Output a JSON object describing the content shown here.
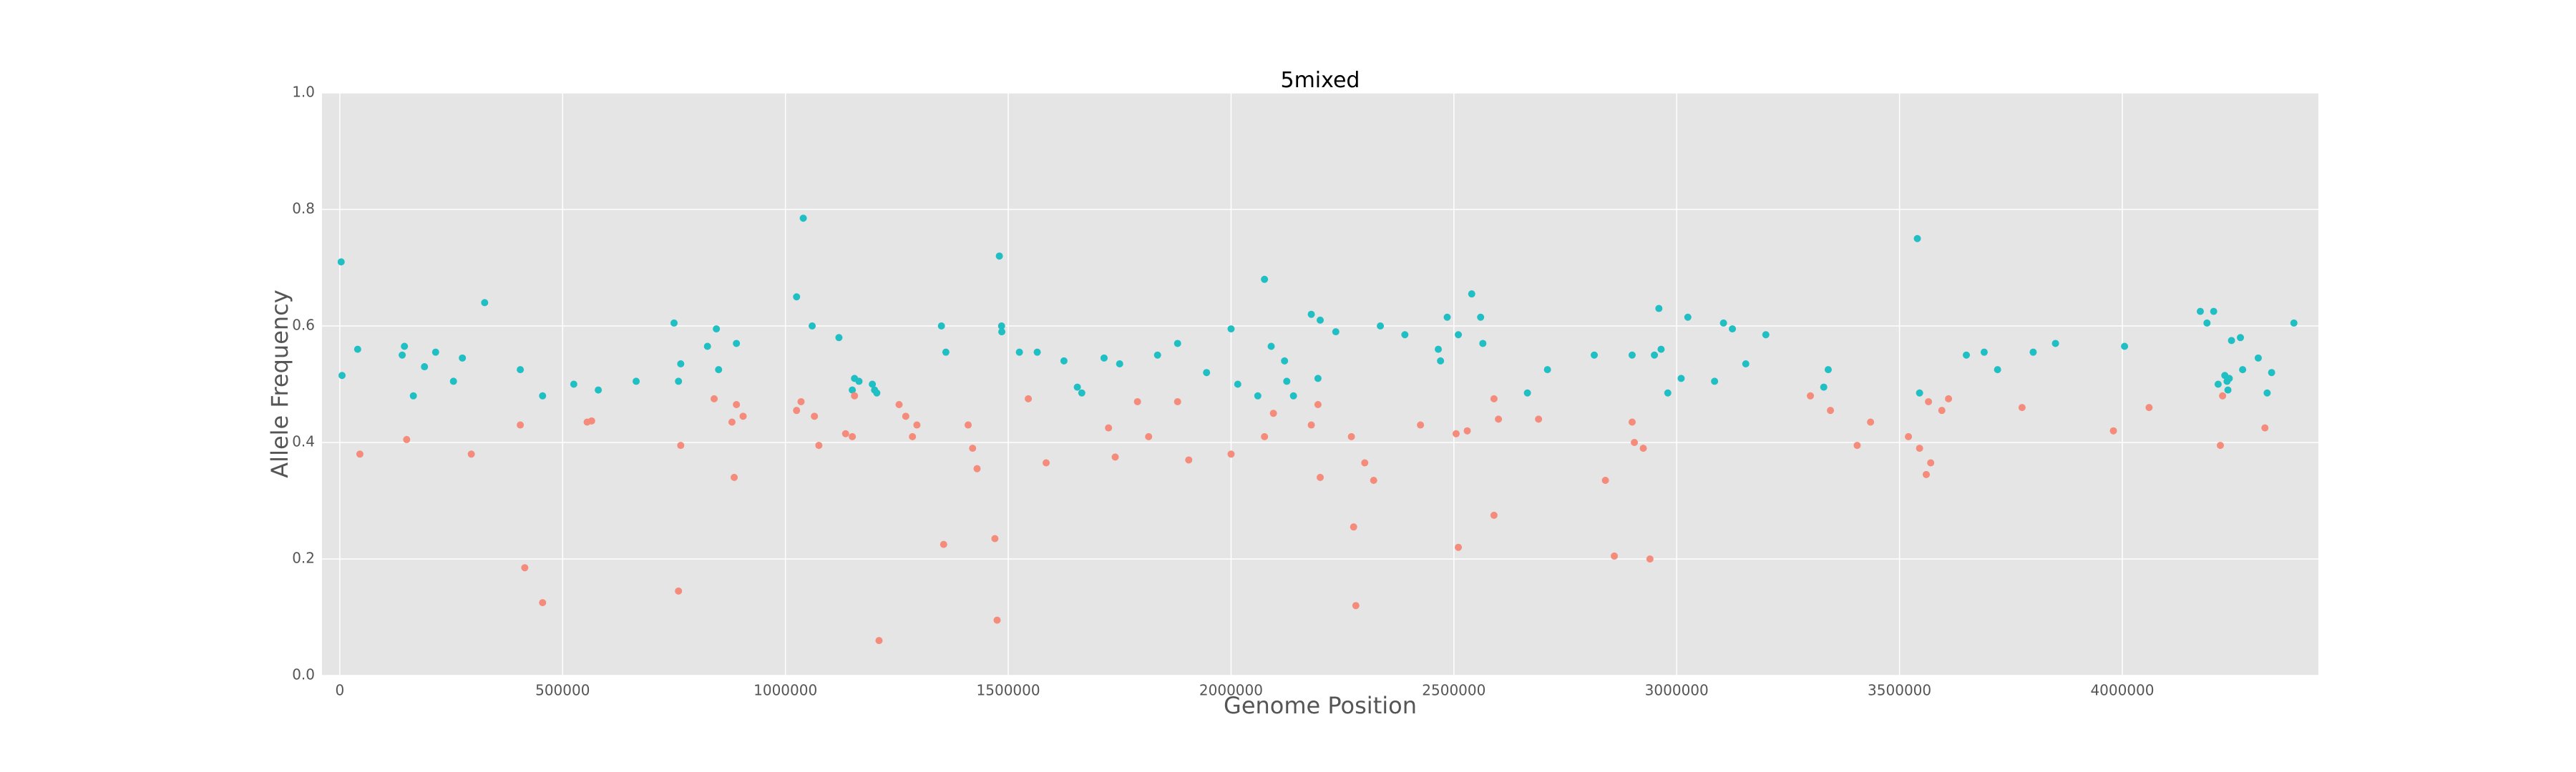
{
  "chart_data": {
    "type": "scatter",
    "title": "5mixed",
    "xlabel": "Genome Position",
    "ylabel": "Allele Frequency",
    "xlim": [
      -40000,
      4440000
    ],
    "ylim": [
      0,
      1
    ],
    "xticks": [
      0,
      500000,
      1000000,
      1500000,
      2000000,
      2500000,
      3000000,
      3500000,
      4000000
    ],
    "yticks": [
      0.0,
      0.2,
      0.4,
      0.6,
      0.8,
      1.0
    ],
    "grid": true,
    "legend": "none",
    "background_color": "#e5e5e5",
    "series": [
      {
        "color": "#1fbfc4",
        "points": [
          [
            3000,
            0.71
          ],
          [
            5000,
            0.515
          ],
          [
            40000,
            0.56
          ],
          [
            140000,
            0.55
          ],
          [
            145000,
            0.565
          ],
          [
            165000,
            0.48
          ],
          [
            190000,
            0.53
          ],
          [
            215000,
            0.555
          ],
          [
            255000,
            0.505
          ],
          [
            275000,
            0.545
          ],
          [
            325000,
            0.64
          ],
          [
            405000,
            0.525
          ],
          [
            455000,
            0.48
          ],
          [
            525000,
            0.5
          ],
          [
            580000,
            0.49
          ],
          [
            665000,
            0.505
          ],
          [
            750000,
            0.605
          ],
          [
            760000,
            0.505
          ],
          [
            765000,
            0.535
          ],
          [
            825000,
            0.565
          ],
          [
            845000,
            0.595
          ],
          [
            850000,
            0.525
          ],
          [
            890000,
            0.57
          ],
          [
            1025000,
            0.65
          ],
          [
            1040000,
            0.785
          ],
          [
            1060000,
            0.6
          ],
          [
            1120000,
            0.58
          ],
          [
            1150000,
            0.49
          ],
          [
            1155000,
            0.51
          ],
          [
            1165000,
            0.505
          ],
          [
            1195000,
            0.5
          ],
          [
            1200000,
            0.49
          ],
          [
            1205000,
            0.485
          ],
          [
            1350000,
            0.6
          ],
          [
            1360000,
            0.555
          ],
          [
            1480000,
            0.72
          ],
          [
            1485000,
            0.6
          ],
          [
            1485500,
            0.59
          ],
          [
            1525000,
            0.555
          ],
          [
            1565000,
            0.555
          ],
          [
            1625000,
            0.54
          ],
          [
            1655000,
            0.495
          ],
          [
            1665000,
            0.485
          ],
          [
            1715000,
            0.545
          ],
          [
            1750000,
            0.535
          ],
          [
            1835000,
            0.55
          ],
          [
            1880000,
            0.57
          ],
          [
            1945000,
            0.52
          ],
          [
            2000000,
            0.595
          ],
          [
            2015000,
            0.5
          ],
          [
            2060000,
            0.48
          ],
          [
            2075000,
            0.68
          ],
          [
            2090000,
            0.565
          ],
          [
            2120000,
            0.54
          ],
          [
            2125000,
            0.505
          ],
          [
            2140000,
            0.48
          ],
          [
            2180000,
            0.62
          ],
          [
            2195000,
            0.51
          ],
          [
            2200000,
            0.61
          ],
          [
            2235000,
            0.59
          ],
          [
            2335000,
            0.6
          ],
          [
            2390000,
            0.585
          ],
          [
            2465000,
            0.56
          ],
          [
            2470000,
            0.54
          ],
          [
            2485000,
            0.615
          ],
          [
            2510000,
            0.585
          ],
          [
            2540000,
            0.655
          ],
          [
            2560000,
            0.615
          ],
          [
            2565000,
            0.57
          ],
          [
            2665000,
            0.485
          ],
          [
            2710000,
            0.525
          ],
          [
            2815000,
            0.55
          ],
          [
            2900000,
            0.55
          ],
          [
            2950000,
            0.55
          ],
          [
            2960000,
            0.63
          ],
          [
            2965000,
            0.56
          ],
          [
            2980000,
            0.485
          ],
          [
            3010000,
            0.51
          ],
          [
            3025000,
            0.615
          ],
          [
            3085000,
            0.505
          ],
          [
            3105000,
            0.605
          ],
          [
            3125000,
            0.595
          ],
          [
            3155000,
            0.535
          ],
          [
            3200000,
            0.585
          ],
          [
            3330000,
            0.495
          ],
          [
            3340000,
            0.525
          ],
          [
            3540000,
            0.75
          ],
          [
            3545000,
            0.485
          ],
          [
            3650000,
            0.55
          ],
          [
            3690000,
            0.555
          ],
          [
            3720000,
            0.525
          ],
          [
            3800000,
            0.555
          ],
          [
            3850000,
            0.57
          ],
          [
            4005000,
            0.565
          ],
          [
            4175000,
            0.625
          ],
          [
            4190000,
            0.605
          ],
          [
            4205000,
            0.625
          ],
          [
            4215000,
            0.5
          ],
          [
            4230000,
            0.515
          ],
          [
            4235000,
            0.505
          ],
          [
            4237000,
            0.49
          ],
          [
            4240000,
            0.51
          ],
          [
            4245000,
            0.575
          ],
          [
            4265000,
            0.58
          ],
          [
            4270000,
            0.525
          ],
          [
            4305000,
            0.545
          ],
          [
            4325000,
            0.485
          ],
          [
            4335000,
            0.52
          ],
          [
            4385000,
            0.605
          ]
        ]
      },
      {
        "color": "#f48b7b",
        "points": [
          [
            45000,
            0.38
          ],
          [
            150000,
            0.405
          ],
          [
            295000,
            0.38
          ],
          [
            405000,
            0.43
          ],
          [
            415000,
            0.185
          ],
          [
            455000,
            0.125
          ],
          [
            555000,
            0.435
          ],
          [
            565000,
            0.437
          ],
          [
            760000,
            0.145
          ],
          [
            765000,
            0.395
          ],
          [
            840000,
            0.475
          ],
          [
            880000,
            0.435
          ],
          [
            885000,
            0.34
          ],
          [
            890000,
            0.465
          ],
          [
            905000,
            0.445
          ],
          [
            1025000,
            0.455
          ],
          [
            1035000,
            0.47
          ],
          [
            1065000,
            0.445
          ],
          [
            1075000,
            0.395
          ],
          [
            1135000,
            0.415
          ],
          [
            1150000,
            0.41
          ],
          [
            1155000,
            0.48
          ],
          [
            1210000,
            0.06
          ],
          [
            1255000,
            0.465
          ],
          [
            1270000,
            0.445
          ],
          [
            1285000,
            0.41
          ],
          [
            1295000,
            0.43
          ],
          [
            1355000,
            0.225
          ],
          [
            1410000,
            0.43
          ],
          [
            1420000,
            0.39
          ],
          [
            1430000,
            0.355
          ],
          [
            1470000,
            0.235
          ],
          [
            1475000,
            0.095
          ],
          [
            1545000,
            0.475
          ],
          [
            1585000,
            0.365
          ],
          [
            1725000,
            0.425
          ],
          [
            1740000,
            0.375
          ],
          [
            1790000,
            0.47
          ],
          [
            1815000,
            0.41
          ],
          [
            1880000,
            0.47
          ],
          [
            1905000,
            0.37
          ],
          [
            2000000,
            0.38
          ],
          [
            2075000,
            0.41
          ],
          [
            2095000,
            0.45
          ],
          [
            2180000,
            0.43
          ],
          [
            2195000,
            0.465
          ],
          [
            2200000,
            0.34
          ],
          [
            2270000,
            0.41
          ],
          [
            2275000,
            0.255
          ],
          [
            2280000,
            0.12
          ],
          [
            2300000,
            0.365
          ],
          [
            2320000,
            0.335
          ],
          [
            2425000,
            0.43
          ],
          [
            2505000,
            0.415
          ],
          [
            2510000,
            0.22
          ],
          [
            2530000,
            0.42
          ],
          [
            2590000,
            0.275
          ],
          [
            2600000,
            0.44
          ],
          [
            2590000,
            0.475
          ],
          [
            2690000,
            0.44
          ],
          [
            2840000,
            0.335
          ],
          [
            2860000,
            0.205
          ],
          [
            2900000,
            0.435
          ],
          [
            2905000,
            0.4
          ],
          [
            2925000,
            0.39
          ],
          [
            2940000,
            0.2
          ],
          [
            3300000,
            0.48
          ],
          [
            3345000,
            0.455
          ],
          [
            3405000,
            0.395
          ],
          [
            3435000,
            0.435
          ],
          [
            3520000,
            0.41
          ],
          [
            3545000,
            0.39
          ],
          [
            3560000,
            0.345
          ],
          [
            3565000,
            0.47
          ],
          [
            3570000,
            0.365
          ],
          [
            3595000,
            0.455
          ],
          [
            3610000,
            0.475
          ],
          [
            3775000,
            0.46
          ],
          [
            3980000,
            0.42
          ],
          [
            4060000,
            0.46
          ],
          [
            4220000,
            0.395
          ],
          [
            4225000,
            0.48
          ],
          [
            4320000,
            0.425
          ]
        ]
      }
    ]
  }
}
